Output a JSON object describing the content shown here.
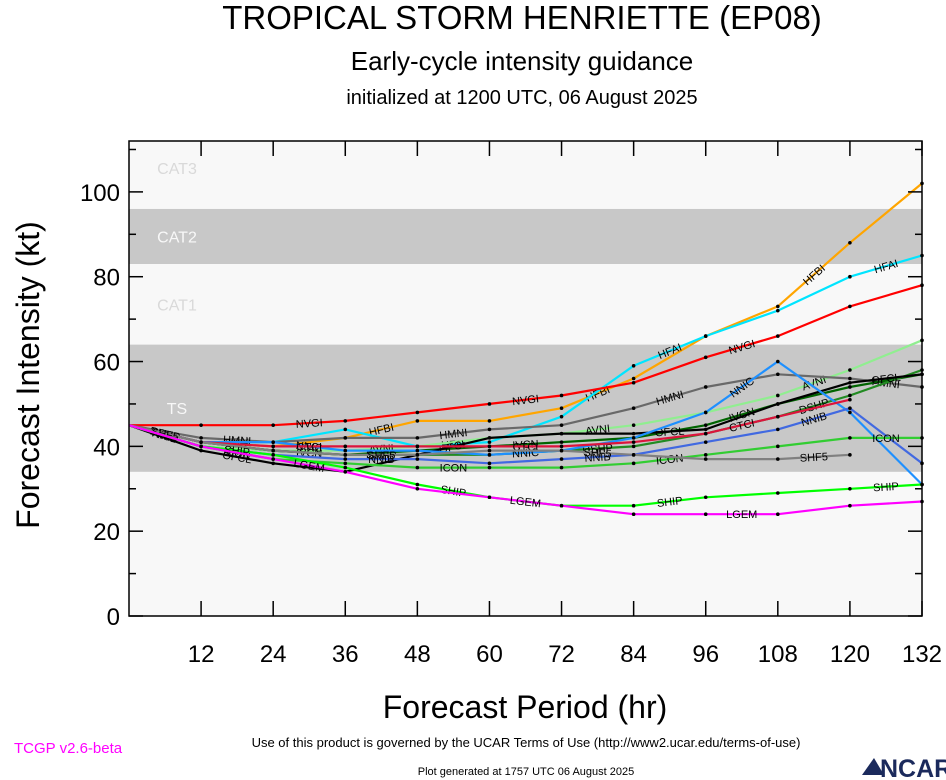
{
  "titles": {
    "main": "TROPICAL STORM HENRIETTE (EP08)",
    "sub": "Early-cycle intensity guidance",
    "init": "initialized at 1200 UTC, 06 August 2025"
  },
  "footer": {
    "terms": "Use of this product is governed by the UCAR Terms of Use (http://www2.ucar.edu/terms-of-use)",
    "generated": "Plot generated at 1757 UTC   06 August 2025",
    "version": "TCGP v2.6-beta",
    "logo": "NCAR"
  },
  "chart_data": {
    "type": "line",
    "xlabel": "Forecast Period (hr)",
    "ylabel": "Forecast Intensity (kt)",
    "xlim": [
      0,
      132
    ],
    "ylim": [
      0,
      112
    ],
    "xticks": [
      12,
      24,
      36,
      48,
      60,
      72,
      84,
      96,
      108,
      120,
      132
    ],
    "yticks": [
      0,
      20,
      40,
      60,
      80,
      100
    ],
    "bands": [
      {
        "label": "TS",
        "from": 34,
        "to": 64,
        "shade": "dark"
      },
      {
        "label": "CAT1",
        "from": 64,
        "to": 83,
        "shade": "light"
      },
      {
        "label": "CAT2",
        "from": 83,
        "to": 96,
        "shade": "dark"
      },
      {
        "label": "CAT3",
        "from": 96,
        "to": 112,
        "shade": "light"
      }
    ],
    "colors": {
      "dark_band": "#c8c8c8",
      "light_band": "#f8f8f8"
    },
    "series": [
      {
        "name": "HFBI",
        "color": "#ffa500",
        "x": [
          0,
          12,
          24,
          36,
          48,
          60,
          72,
          84,
          96,
          108,
          120,
          132
        ],
        "y": [
          45,
          41,
          40,
          42,
          46,
          46,
          49,
          56,
          66,
          73,
          88,
          102
        ]
      },
      {
        "name": "HFAI",
        "color": "#00e5ff",
        "x": [
          0,
          12,
          24,
          36,
          48,
          60,
          72,
          84,
          96,
          108,
          120,
          132
        ],
        "y": [
          45,
          41,
          41,
          44,
          40,
          41,
          47,
          59,
          66,
          72,
          80,
          85
        ]
      },
      {
        "name": "NVGI",
        "color": "#ff0000",
        "x": [
          0,
          12,
          24,
          36,
          48,
          60,
          72,
          84,
          96,
          108,
          120,
          132
        ],
        "y": [
          45,
          45,
          45,
          46,
          48,
          50,
          52,
          55,
          61,
          66,
          73,
          78
        ]
      },
      {
        "name": "AVNI",
        "color": "#90ee90",
        "x": [
          0,
          12,
          24,
          36,
          48,
          60,
          72,
          84,
          96,
          108,
          120,
          132
        ],
        "y": [
          45,
          40,
          39,
          39,
          40,
          42,
          43,
          45,
          48,
          52,
          58,
          65
        ]
      },
      {
        "name": "HMNI",
        "color": "#696969",
        "x": [
          0,
          12,
          24,
          36,
          48,
          60,
          72,
          84,
          96,
          108,
          120,
          132
        ],
        "y": [
          45,
          42,
          41,
          42,
          42,
          44,
          45,
          49,
          54,
          57,
          56,
          54
        ]
      },
      {
        "name": "IVCN",
        "color": "#006400",
        "x": [
          0,
          12,
          24,
          36,
          48,
          60,
          72,
          84,
          96,
          108,
          120,
          132
        ],
        "y": [
          45,
          41,
          39,
          38,
          39,
          40,
          41,
          42,
          45,
          50,
          54,
          57
        ]
      },
      {
        "name": "DSHP",
        "color": "#228b22",
        "x": [
          0,
          12,
          24,
          36,
          48,
          60,
          72,
          84,
          96,
          108,
          120,
          132
        ],
        "y": [
          45,
          41,
          39,
          38,
          38,
          38,
          39,
          40,
          43,
          47,
          52,
          58
        ]
      },
      {
        "name": "OFCL",
        "color": "#000000",
        "x": [
          0,
          12,
          24,
          36,
          48,
          60,
          72,
          84,
          96,
          108,
          120,
          132
        ],
        "y": [
          45,
          39,
          36,
          34,
          38,
          42,
          43,
          43,
          44,
          50,
          55,
          57
        ]
      },
      {
        "name": "NNIC",
        "color": "#1e90ff",
        "x": [
          0,
          12,
          24,
          36,
          48,
          60,
          72,
          84,
          96,
          108,
          120,
          132
        ],
        "y": [
          45,
          41,
          41,
          39,
          39,
          38,
          39,
          42,
          48,
          60,
          48,
          31
        ]
      },
      {
        "name": "NNIB",
        "color": "#4169e1",
        "x": [
          0,
          12,
          24,
          36,
          48,
          60,
          72,
          84,
          96,
          108,
          120,
          132
        ],
        "y": [
          45,
          40,
          38,
          37,
          37,
          36,
          37,
          38,
          41,
          44,
          49,
          36
        ]
      },
      {
        "name": "ICON",
        "color": "#32cd32",
        "x": [
          0,
          12,
          24,
          36,
          48,
          60,
          72,
          84,
          96,
          108,
          120,
          132
        ],
        "y": [
          45,
          40,
          37,
          36,
          35,
          35,
          35,
          36,
          38,
          40,
          42,
          42
        ]
      },
      {
        "name": "CTCI",
        "color": "#dc143c",
        "x": [
          0,
          12,
          24,
          36,
          48,
          60,
          72,
          84,
          96,
          108,
          120,
          132
        ],
        "y": [
          45,
          41,
          40,
          40,
          40,
          40,
          40,
          41,
          43,
          47,
          51,
          null
        ]
      },
      {
        "name": "SHF5",
        "color": "#808080",
        "x": [
          0,
          12,
          24,
          36,
          48,
          60,
          72,
          84,
          96,
          108,
          120,
          132
        ],
        "y": [
          45,
          41,
          39,
          38,
          38,
          39,
          39,
          38,
          37,
          37,
          38,
          null
        ]
      },
      {
        "name": "SHIP",
        "color": "#00ff00",
        "x": [
          0,
          12,
          24,
          36,
          48,
          60,
          72,
          84,
          96,
          108,
          120,
          132
        ],
        "y": [
          45,
          40,
          38,
          35,
          31,
          28,
          26,
          26,
          28,
          29,
          30,
          31
        ]
      },
      {
        "name": "LGEM",
        "color": "#ff00ff",
        "x": [
          0,
          12,
          24,
          36,
          48,
          60,
          72,
          84,
          96,
          108,
          120,
          132
        ],
        "y": [
          45,
          40,
          37,
          34,
          30,
          28,
          26,
          24,
          24,
          24,
          26,
          27
        ]
      }
    ]
  }
}
